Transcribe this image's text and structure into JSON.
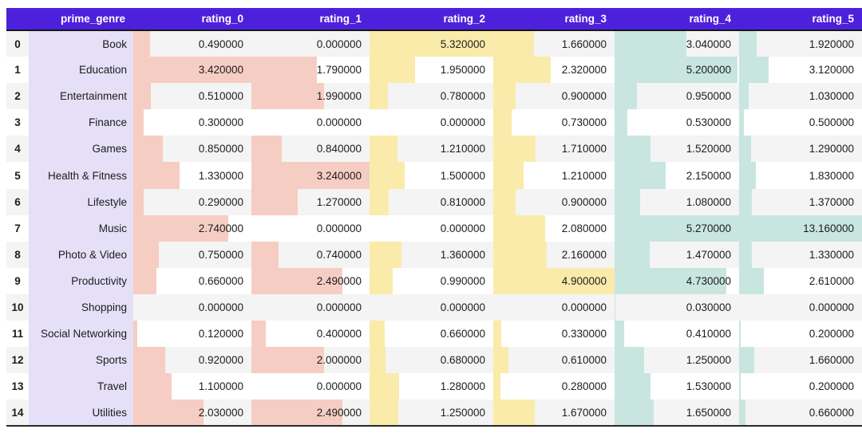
{
  "chart_data": {
    "type": "table",
    "title": "App Store prime_genre ratings distribution (styled DataFrame with in-cell bars)",
    "index_header": "",
    "columns": [
      "prime_genre",
      "rating_0",
      "rating_1",
      "rating_2",
      "rating_3",
      "rating_4",
      "rating_5"
    ],
    "index": [
      "0",
      "1",
      "2",
      "3",
      "4",
      "5",
      "6",
      "7",
      "8",
      "9",
      "10",
      "11",
      "12",
      "13",
      "14"
    ],
    "rows": [
      {
        "prime_genre": "Book",
        "values": [
          0.49,
          0.0,
          5.32,
          1.66,
          3.04,
          1.92
        ]
      },
      {
        "prime_genre": "Education",
        "values": [
          3.42,
          1.79,
          1.95,
          2.32,
          5.2,
          3.12
        ]
      },
      {
        "prime_genre": "Entertainment",
        "values": [
          0.51,
          1.99,
          0.78,
          0.9,
          0.95,
          1.03
        ]
      },
      {
        "prime_genre": "Finance",
        "values": [
          0.3,
          0.0,
          0.0,
          0.73,
          0.53,
          0.5
        ]
      },
      {
        "prime_genre": "Games",
        "values": [
          0.85,
          0.84,
          1.21,
          1.71,
          1.52,
          1.29
        ]
      },
      {
        "prime_genre": "Health & Fitness",
        "values": [
          1.33,
          3.24,
          1.5,
          1.21,
          2.15,
          1.83
        ]
      },
      {
        "prime_genre": "Lifestyle",
        "values": [
          0.29,
          1.27,
          0.81,
          0.9,
          1.08,
          1.37
        ]
      },
      {
        "prime_genre": "Music",
        "values": [
          2.74,
          0.0,
          0.0,
          2.08,
          5.27,
          13.16
        ]
      },
      {
        "prime_genre": "Photo & Video",
        "values": [
          0.75,
          0.74,
          1.36,
          2.16,
          1.47,
          1.33
        ]
      },
      {
        "prime_genre": "Productivity",
        "values": [
          0.66,
          2.49,
          0.99,
          4.9,
          4.73,
          2.61
        ]
      },
      {
        "prime_genre": "Shopping",
        "values": [
          0.0,
          0.0,
          0.0,
          0.0,
          0.03,
          0.0
        ]
      },
      {
        "prime_genre": "Social Networking",
        "values": [
          0.12,
          0.4,
          0.66,
          0.33,
          0.41,
          0.2
        ]
      },
      {
        "prime_genre": "Sports",
        "values": [
          0.92,
          2.0,
          0.68,
          0.61,
          1.25,
          1.66
        ]
      },
      {
        "prime_genre": "Travel",
        "values": [
          1.1,
          0.0,
          1.28,
          0.28,
          1.53,
          0.2
        ]
      },
      {
        "prime_genre": "Utilities",
        "values": [
          2.03,
          2.49,
          1.25,
          1.67,
          1.65,
          0.66
        ]
      }
    ],
    "value_decimals": 6,
    "legend_position": "none",
    "grid": false
  },
  "colors": {
    "header_bg": "#4D21DB",
    "header_text": "#FFFFFF",
    "genre_bg": "#E5E0F8",
    "stripe_bg": "#F4F4F4",
    "row_bg": "#FFFFFF",
    "text": "#1C1C1C",
    "header_divider": "#161616",
    "bottom_border": "#2A2A2A",
    "bar_colors_by_column": [
      "#F6CDC3",
      "#F6CDC3",
      "#FAEBAA",
      "#FAEBAA",
      "#C8E6DF",
      "#C8E6DF"
    ]
  }
}
